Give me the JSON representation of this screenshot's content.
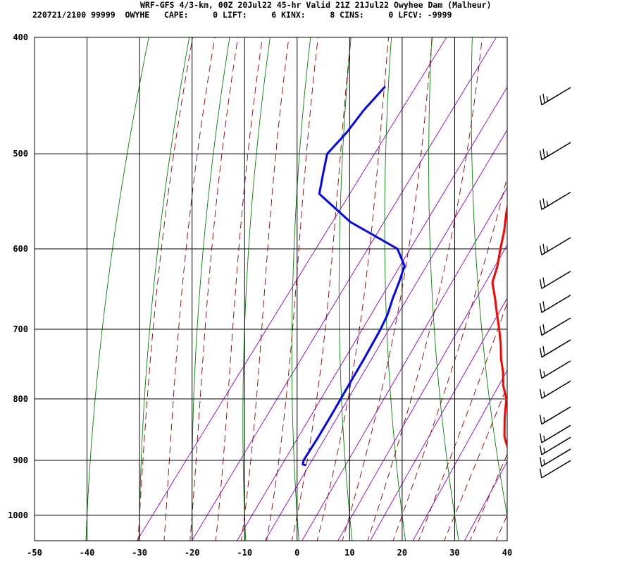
{
  "header": {
    "title": "WRF-GFS 4/3-km, 00Z 20Jul22 45-hr Valid 21Z 21Jul22 Owyhee Dam (Malheur)",
    "indices": "220721/2100 99999  OWYHE   CAPE:     0 LIFT:     6 KINX:     8 CINS:     0 LFCV: -9999"
  },
  "colors": {
    "temperature": "#ff0000",
    "dewpoint": "#0000ff",
    "dry_adiabat": "#008000",
    "moist_adiabat": "#8b0000",
    "mixing_ratio": "#8b00c8",
    "grid": "#000000"
  },
  "chart_data": {
    "type": "line",
    "title": "WRF-GFS 4/3-km, 00Z 20Jul22 45-hr Valid 21Z 21Jul22 Owyhee Dam (Malheur)",
    "xlabel": "",
    "ylabel": "",
    "xlim": [
      -50,
      40
    ],
    "ylim": [
      1050,
      400
    ],
    "x_ticks": [
      "-50",
      "-40",
      "-30",
      "-20",
      "-10",
      "0",
      "10",
      "20",
      "30",
      "40"
    ],
    "y_ticks": [
      "400",
      "500",
      "600",
      "700",
      "800",
      "900",
      "1000"
    ],
    "y_scale": "log",
    "x_skew": "skewed",
    "grid": true,
    "series": [
      {
        "key": "temperature",
        "p": [
          908,
          906,
          900,
          880,
          860,
          830,
          800,
          780,
          760,
          740,
          720,
          700,
          680,
          660,
          640,
          620,
          600,
          580,
          560,
          540,
          520,
          500,
          480,
          460,
          440
        ],
        "x": [
          36.3,
          34.8,
          33.5,
          31.0,
          28.7,
          26.2,
          23.9,
          21.5,
          19.6,
          17.3,
          15.3,
          13.0,
          10.5,
          8.0,
          5.3,
          4.0,
          2.2,
          0.5,
          -1.6,
          -3.5,
          -5.9,
          -8.4,
          -10.7,
          -13.0,
          -15.4
        ]
      },
      {
        "key": "dewpoint",
        "p": [
          908,
          907,
          900,
          860,
          820,
          780,
          740,
          700,
          680,
          660,
          640,
          620,
          600,
          590,
          570,
          540,
          520,
          500,
          480,
          460,
          440
        ],
        "x": [
          -5.4,
          -5.9,
          -6.3,
          -6.7,
          -7.3,
          -8.0,
          -8.7,
          -9.6,
          -10.3,
          -11.5,
          -12.5,
          -13.7,
          -17.4,
          -21.5,
          -30.0,
          -39.8,
          -41.8,
          -43.8,
          -43.0,
          -42.8,
          -42.0
        ]
      }
    ],
    "winds": [
      {
        "p": 450,
        "kt": 25
      },
      {
        "p": 500,
        "kt": 25
      },
      {
        "p": 550,
        "kt": 25
      },
      {
        "p": 600,
        "kt": 25
      },
      {
        "p": 640,
        "kt": 20
      },
      {
        "p": 670,
        "kt": 20
      },
      {
        "p": 700,
        "kt": 20
      },
      {
        "p": 730,
        "kt": 20
      },
      {
        "p": 760,
        "kt": 15
      },
      {
        "p": 790,
        "kt": 15
      },
      {
        "p": 830,
        "kt": 15
      },
      {
        "p": 860,
        "kt": 15
      },
      {
        "p": 880,
        "kt": 15
      },
      {
        "p": 900,
        "kt": 15
      },
      {
        "p": 920,
        "kt": 10
      }
    ]
  }
}
